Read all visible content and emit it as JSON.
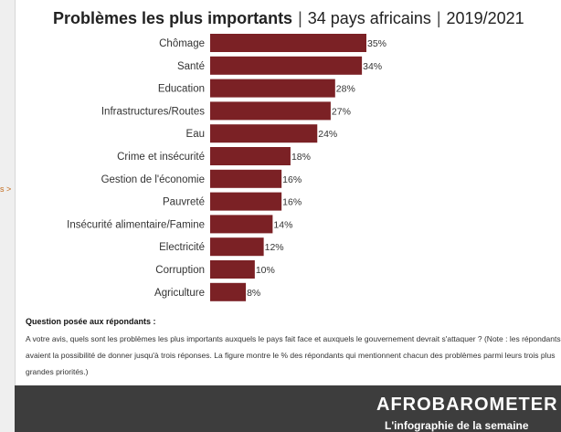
{
  "page": {
    "left_crumb": "s >"
  },
  "header": {
    "title_main": "Problèmes les plus importants",
    "title_scope": "34 pays africains",
    "title_period": "2019/2021",
    "separator": "|"
  },
  "chart_data": {
    "type": "bar",
    "orientation": "horizontal",
    "title": "Problèmes les plus importants | 34 pays africains | 2019/2021",
    "categories": [
      "Chômage",
      "Santé",
      "Education",
      "Infrastructures/Routes",
      "Eau",
      "Crime et insécurité",
      "Gestion de l'économie",
      "Pauvreté",
      "Insécurité alimentaire/Famine",
      "Electricité",
      "Corruption",
      "Agriculture"
    ],
    "values": [
      35,
      34,
      28,
      27,
      24,
      18,
      16,
      16,
      14,
      12,
      10,
      8
    ],
    "value_labels": [
      "35%",
      "34%",
      "28%",
      "27%",
      "24%",
      "18%",
      "16%",
      "16%",
      "14%",
      "12%",
      "10%",
      "8%"
    ],
    "unit": "%",
    "xlim": [
      0,
      35
    ],
    "grid": false,
    "colors": {
      "bar": "#7b2125"
    }
  },
  "question": {
    "heading": "Question posée aux répondants :",
    "text": "A votre avis, quels sont les problèmes les plus importants auxquels le pays fait face et auxquels le gouvernement devrait s'attaquer ? (Note : les répondants avaient la possibilité de donner jusqu'à trois réponses. La figure montre le % des répondants qui mentionnent chacun des problèmes parmi leurs trois plus grandes priorités.)"
  },
  "footer": {
    "brand": "AFROBAROMETER",
    "subtitle": "L'infographie de la semaine",
    "background": "#3d3d3d"
  }
}
